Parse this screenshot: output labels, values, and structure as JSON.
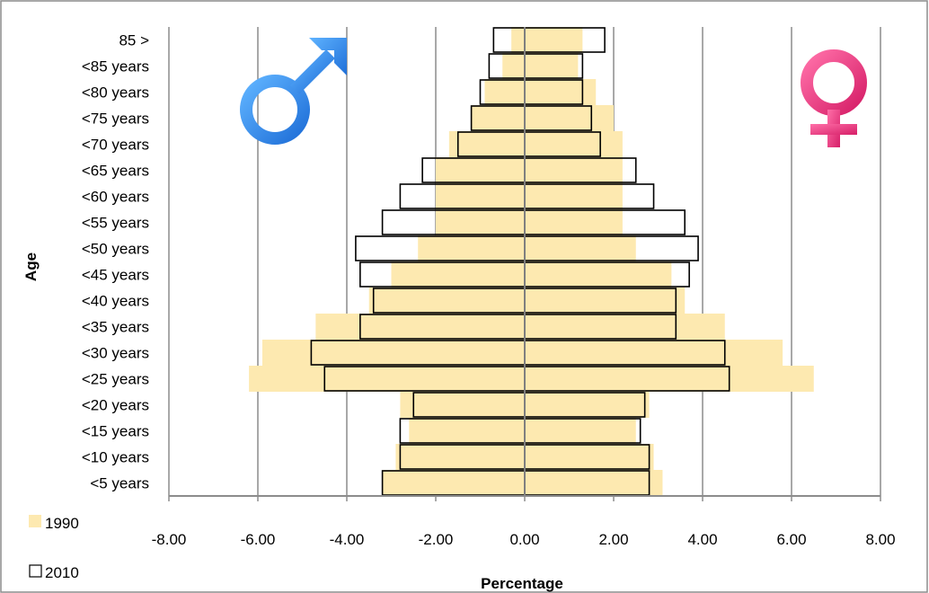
{
  "chart_data": {
    "type": "bar",
    "orientation": "horizontal",
    "title": "",
    "xlabel": "Percentage",
    "ylabel": "Age",
    "xlim": [
      -8,
      8
    ],
    "x_ticks": [
      "-8.00",
      "-6.00",
      "-4.00",
      "-2.00",
      "0.00",
      "2.00",
      "4.00",
      "6.00",
      "8.00"
    ],
    "categories": [
      "<5 years",
      "<10 years",
      "<15 years",
      "<20 years",
      "<25 years",
      "<30 years",
      "<35 years",
      "<40 years",
      "<45 years",
      "<50 years",
      "<55 years",
      "<60 years",
      "<65 years",
      "<70 years",
      "<75 years",
      "<80 years",
      "<85 years",
      "85 >"
    ],
    "grid": "vertical",
    "legend_position": "bottom-left",
    "series": [
      {
        "name": "1990",
        "color": "#fde9b0",
        "male": [
          -3.2,
          -2.9,
          -2.6,
          -2.8,
          -6.2,
          -5.9,
          -4.7,
          -3.5,
          -3.0,
          -2.4,
          -2.0,
          -2.0,
          -2.0,
          -1.7,
          -1.2,
          -0.9,
          -0.5,
          -0.3
        ],
        "female": [
          3.1,
          2.9,
          2.5,
          2.8,
          6.5,
          5.8,
          4.5,
          3.6,
          3.3,
          2.5,
          2.2,
          2.2,
          2.2,
          2.2,
          2.0,
          1.6,
          1.2,
          1.3
        ]
      },
      {
        "name": "2010",
        "color": "#ffffff",
        "male": [
          -3.2,
          -2.8,
          -2.8,
          -2.5,
          -4.5,
          -4.8,
          -3.7,
          -3.4,
          -3.7,
          -3.8,
          -3.2,
          -2.8,
          -2.3,
          -1.5,
          -1.2,
          -1.0,
          -0.8,
          -0.7
        ],
        "female": [
          2.8,
          2.8,
          2.6,
          2.7,
          4.6,
          4.5,
          3.4,
          3.4,
          3.7,
          3.9,
          3.6,
          2.9,
          2.5,
          1.7,
          1.5,
          1.3,
          1.3,
          1.8
        ]
      }
    ],
    "annotations": [
      {
        "name": "male-symbol",
        "color": "#3f8ef0"
      },
      {
        "name": "female-symbol",
        "color": "#e8367f"
      }
    ]
  }
}
